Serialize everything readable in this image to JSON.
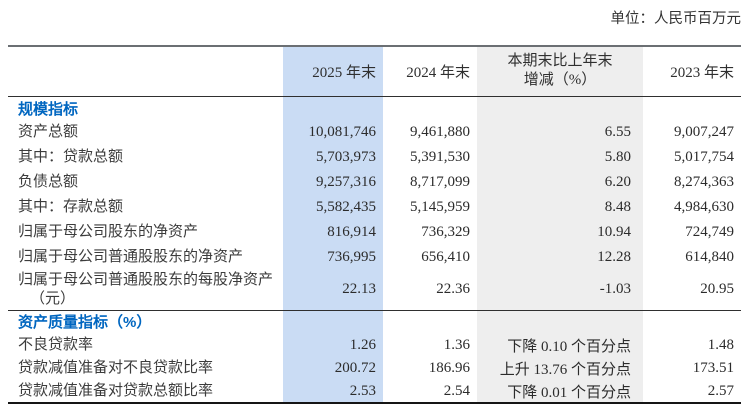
{
  "unit_note": "单位：人民币百万元",
  "colors": {
    "highlight_column_bg": "#cadcf4",
    "change_column_bg": "#eeeeee",
    "section_header_color": "#0066c0"
  },
  "header": {
    "col_label": "",
    "col_2025": "2025 年末",
    "col_2024": "2024 年末",
    "col_change_line1": "本期末比上年末",
    "col_change_line2": "增减（%）",
    "col_2023": "2023 年末"
  },
  "rows": [
    {
      "type": "section",
      "label": "规模指标",
      "v2025": "",
      "v2024": "",
      "change": "",
      "v2023": ""
    },
    {
      "type": "data",
      "label": "资产总额",
      "v2025": "10,081,746",
      "v2024": "9,461,880",
      "change": "6.55",
      "v2023": "9,007,247"
    },
    {
      "type": "data",
      "label": "其中：贷款总额",
      "v2025": "5,703,973",
      "v2024": "5,391,530",
      "change": "5.80",
      "v2023": "5,017,754"
    },
    {
      "type": "data",
      "label": "负债总额",
      "v2025": "9,257,316",
      "v2024": "8,717,099",
      "change": "6.20",
      "v2023": "8,274,363"
    },
    {
      "type": "data",
      "label": "其中：存款总额",
      "v2025": "5,582,435",
      "v2024": "5,145,959",
      "change": "8.48",
      "v2023": "4,984,630"
    },
    {
      "type": "data",
      "label": "归属于母公司股东的净资产",
      "v2025": "816,914",
      "v2024": "736,329",
      "change": "10.94",
      "v2023": "724,749"
    },
    {
      "type": "data",
      "label": "归属于母公司普通股股东的净资产",
      "v2025": "736,995",
      "v2024": "656,410",
      "change": "12.28",
      "v2023": "614,840"
    },
    {
      "type": "data",
      "label": "归属于母公司普通股股东的每股净资产（元）",
      "v2025": "22.13",
      "v2024": "22.36",
      "change": "-1.03",
      "v2023": "20.95"
    },
    {
      "type": "section",
      "label": "资产质量指标（%）",
      "v2025": "",
      "v2024": "",
      "change": "",
      "v2023": ""
    },
    {
      "type": "data",
      "label": "不良贷款率",
      "v2025": "1.26",
      "v2024": "1.36",
      "change": "下降 0.10 个百分点",
      "v2023": "1.48"
    },
    {
      "type": "data",
      "label": "贷款减值准备对不良贷款比率",
      "v2025": "200.72",
      "v2024": "186.96",
      "change": "上升 13.76 个百分点",
      "v2023": "173.51"
    },
    {
      "type": "data",
      "label": "贷款减值准备对贷款总额比率",
      "v2025": "2.53",
      "v2024": "2.54",
      "change": "下降 0.01 个百分点",
      "v2023": "2.57"
    }
  ]
}
